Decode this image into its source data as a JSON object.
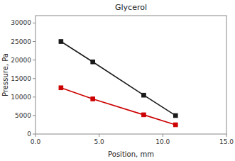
{
  "chart_data": {
    "type": "line",
    "title": "Glycerol",
    "xlabel": "Position, mm",
    "ylabel": "Pressure, Pa",
    "xlim": [
      0.0,
      15.0
    ],
    "ylim": [
      0,
      32000
    ],
    "xticks": [
      {
        "value": 0.0,
        "label": "0.0"
      },
      {
        "value": 5.0,
        "label": "5.0"
      },
      {
        "value": 10.0,
        "label": "10.0"
      },
      {
        "value": 15.0,
        "label": "15.0"
      }
    ],
    "yticks": [
      0,
      5000,
      10000,
      15000,
      20000,
      25000,
      30000
    ],
    "x": [
      2,
      4.5,
      8.5,
      11
    ],
    "series": [
      {
        "color": "#1a1a1a",
        "marker": "square",
        "values": [
          25000,
          19500,
          10500,
          5000
        ]
      },
      {
        "color": "#cc0000",
        "marker": "square",
        "values": [
          12500,
          9500,
          5200,
          2500
        ]
      }
    ]
  }
}
